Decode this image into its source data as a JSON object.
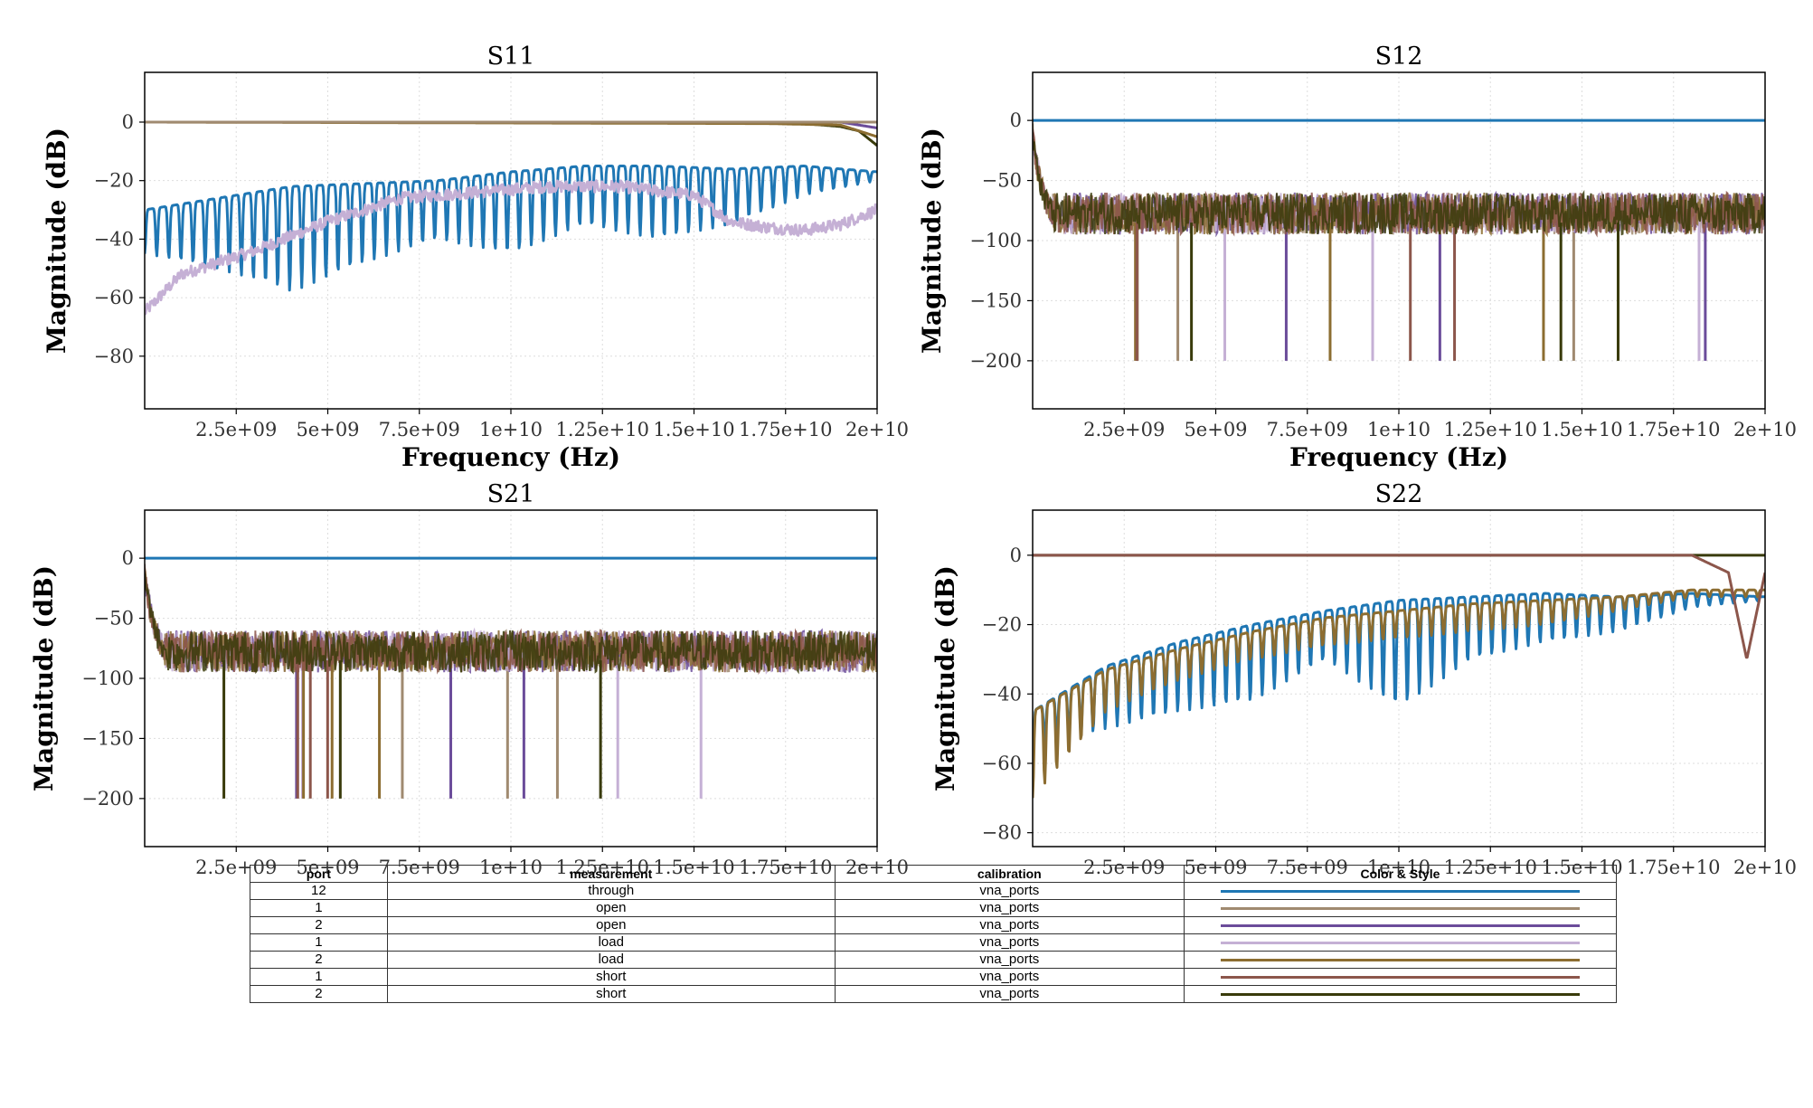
{
  "chart_data": [
    {
      "type": "line",
      "title": "S11",
      "xlabel": "Frequency (Hz)",
      "ylabel": "Magnitude (dB)",
      "xlim": [
        0,
        20000000000
      ],
      "ylim": [
        -98,
        17
      ],
      "xticks": [
        "2.5e+09",
        "5e+09",
        "7.5e+09",
        "1e+10",
        "1.25e+10",
        "1.5e+10",
        "1.75e+10",
        "2e+10"
      ],
      "yticks": [
        "0",
        "−20",
        "−40",
        "−60",
        "−80"
      ],
      "ytick_values": [
        0,
        -20,
        -40,
        -60,
        -80
      ],
      "grid": true,
      "series": [
        {
          "color": "#1f77b4",
          "x": [
            0,
            2000000000,
            4000000000,
            6000000000,
            8000000000,
            10000000000,
            12000000000,
            14000000000,
            16000000000,
            18000000000,
            20000000000
          ],
          "y_upper": [
            -30,
            -26,
            -22,
            -21,
            -20,
            -17,
            -15,
            -15,
            -16,
            -15,
            -17
          ],
          "y_lower": [
            -45,
            -50,
            -58,
            -48,
            -40,
            -45,
            -35,
            -40,
            -35,
            -25,
            -20
          ]
        },
        {
          "color": "#c5b0d5",
          "x": [
            0,
            1000000000,
            3000000000,
            5000000000,
            7000000000,
            9000000000,
            11000000000,
            13000000000,
            15000000000,
            16000000000,
            17000000000,
            18000000000,
            19000000000,
            20000000000
          ],
          "y": [
            -65,
            -52,
            -44,
            -34,
            -26,
            -24,
            -22,
            -22,
            -25,
            -34,
            -36,
            -37,
            -35,
            -30
          ]
        },
        {
          "color": "#393b0b",
          "x": [
            0,
            16000000000,
            18000000000,
            19000000000,
            19500000000,
            20000000000
          ],
          "y": [
            0,
            0,
            -0.5,
            -1.5,
            -3,
            -8
          ]
        },
        {
          "color": "#6b4c9a",
          "x": [
            0,
            17000000000,
            19000000000,
            20000000000
          ],
          "y": [
            0,
            0,
            0,
            -2
          ]
        },
        {
          "color": "#8c6d31",
          "x": [
            0,
            17000000000,
            19000000000,
            20000000000
          ],
          "y": [
            0,
            -0.5,
            -1,
            -5
          ]
        },
        {
          "color": "#8c564b",
          "x": [
            0,
            20000000000
          ],
          "y": [
            0,
            0
          ]
        },
        {
          "color": "#a08a70",
          "x": [
            0,
            20000000000
          ],
          "y": [
            0,
            0
          ]
        }
      ]
    },
    {
      "type": "line",
      "title": "S12",
      "xlabel": "Frequency (Hz)",
      "ylabel": "Magnitude (dB)",
      "xlim": [
        0,
        20000000000
      ],
      "ylim": [
        -240,
        40
      ],
      "xticks": [
        "2.5e+09",
        "5e+09",
        "7.5e+09",
        "1e+10",
        "1.25e+10",
        "1.5e+10",
        "1.75e+10",
        "2e+10"
      ],
      "yticks": [
        "0",
        "−50",
        "−100",
        "−150",
        "−200"
      ],
      "ytick_values": [
        0,
        -50,
        -100,
        -150,
        -200
      ],
      "grid": true,
      "series": [
        {
          "color": "#1f77b4",
          "x": [
            0,
            20000000000
          ],
          "y": [
            0,
            0
          ]
        },
        {
          "color": "#393b0b",
          "noise_band": [
            -95,
            -60
          ]
        }
      ]
    },
    {
      "type": "line",
      "title": "S21",
      "xlabel": "",
      "ylabel": "Magnitude (dB)",
      "xlim": [
        0,
        20000000000
      ],
      "ylim": [
        -240,
        40
      ],
      "xticks": [
        "2.5e+09",
        "5e+09",
        "7.5e+09",
        "1e+10",
        "1.25e+10",
        "1.5e+10",
        "1.75e+10",
        "2e+10"
      ],
      "yticks": [
        "0",
        "−50",
        "−100",
        "−150",
        "−200"
      ],
      "ytick_values": [
        0,
        -50,
        -100,
        -150,
        -200
      ],
      "grid": true,
      "series": [
        {
          "color": "#1f77b4",
          "x": [
            0,
            20000000000
          ],
          "y": [
            0,
            0
          ]
        },
        {
          "color": "#393b0b",
          "noise_band": [
            -95,
            -60
          ]
        }
      ]
    },
    {
      "type": "line",
      "title": "S22",
      "xlabel": "",
      "ylabel": "Magnitude (dB)",
      "xlim": [
        0,
        20000000000
      ],
      "ylim": [
        -84,
        13
      ],
      "xticks": [
        "2.5e+09",
        "5e+09",
        "7.5e+09",
        "1e+10",
        "1.25e+10",
        "1.5e+10",
        "1.75e+10",
        "2e+10"
      ],
      "yticks": [
        "0",
        "−20",
        "−40",
        "−60",
        "−80"
      ],
      "ytick_values": [
        0,
        -20,
        -40,
        -60,
        -80
      ],
      "grid": true,
      "series": [
        {
          "color": "#1f77b4",
          "x": [
            0,
            2000000000,
            4000000000,
            6000000000,
            8000000000,
            10000000000,
            12000000000,
            14000000000,
            16000000000,
            18000000000,
            20000000000
          ],
          "y_upper": [
            -45,
            -32,
            -25,
            -20,
            -16,
            -13,
            -12,
            -11,
            -12,
            -11,
            -12
          ],
          "y_lower": [
            -55,
            -50,
            -45,
            -42,
            -30,
            -44,
            -30,
            -25,
            -22,
            -15,
            -13
          ]
        },
        {
          "color": "#8c6d31",
          "x": [
            0,
            2000000000,
            4000000000,
            6000000000,
            8000000000,
            10000000000,
            12000000000,
            14000000000,
            16000000000,
            18000000000,
            20000000000
          ],
          "y_upper": [
            -45,
            -33,
            -27,
            -22,
            -18,
            -16,
            -14,
            -13,
            -12,
            -10,
            -10
          ],
          "y_lower": [
            -70,
            -45,
            -36,
            -30,
            -26,
            -24,
            -22,
            -20,
            -16,
            -12,
            -12
          ]
        },
        {
          "color": "#393b0b",
          "x": [
            0,
            10000000000,
            18000000000,
            20000000000
          ],
          "y": [
            0,
            0,
            0,
            0
          ]
        },
        {
          "color": "#8c564b",
          "x": [
            0,
            18000000000,
            19000000000,
            19500000000,
            20000000000
          ],
          "y": [
            0,
            0,
            -5,
            -30,
            -5
          ]
        }
      ]
    }
  ],
  "table": {
    "headers": [
      "port",
      "measurement",
      "calibration",
      "Color & Style"
    ],
    "rows": [
      {
        "port": "12",
        "measurement": "through",
        "calibration": "vna_ports",
        "color": "#1f77b4"
      },
      {
        "port": "1",
        "measurement": "open",
        "calibration": "vna_ports",
        "color": "#a08a70"
      },
      {
        "port": "2",
        "measurement": "open",
        "calibration": "vna_ports",
        "color": "#6b4c9a"
      },
      {
        "port": "1",
        "measurement": "load",
        "calibration": "vna_ports",
        "color": "#c5b0d5"
      },
      {
        "port": "2",
        "measurement": "load",
        "calibration": "vna_ports",
        "color": "#8c6d31"
      },
      {
        "port": "1",
        "measurement": "short",
        "calibration": "vna_ports",
        "color": "#8c564b"
      },
      {
        "port": "2",
        "measurement": "short",
        "calibration": "vna_ports",
        "color": "#393b0b"
      }
    ]
  }
}
